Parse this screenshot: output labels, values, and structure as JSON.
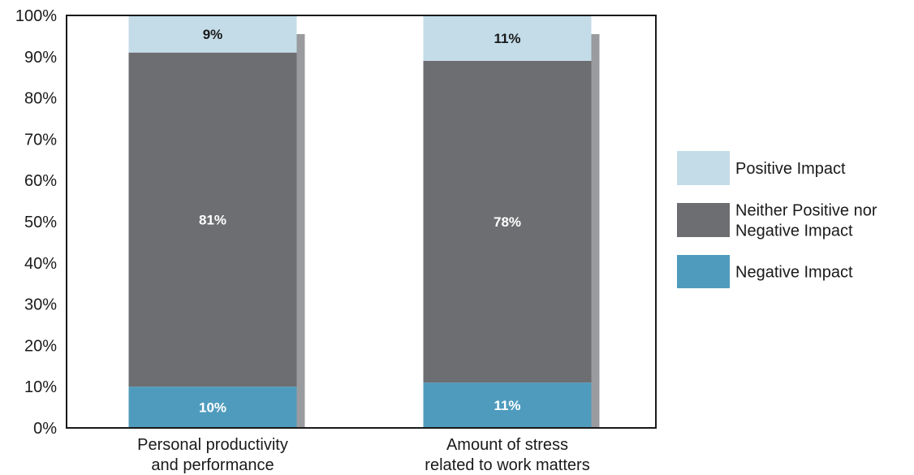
{
  "chart_data": {
    "type": "bar",
    "stacked": true,
    "categories": [
      [
        "Personal productivity",
        "and performance"
      ],
      [
        "Amount of stress",
        "related to work matters"
      ]
    ],
    "series": [
      {
        "name": "Negative Impact",
        "values": [
          10,
          11
        ],
        "labels": [
          "10%",
          "11%"
        ],
        "color": "#4f9bbd",
        "label_color": "#ffffff"
      },
      {
        "name": "Neither Positive nor Negative Impact",
        "legend_lines": [
          "Neither Positive nor",
          "Negative Impact"
        ],
        "values": [
          81,
          78
        ],
        "labels": [
          "81%",
          "78%"
        ],
        "color": "#6d6e71",
        "label_color": "#ffffff"
      },
      {
        "name": "Positive Impact",
        "values": [
          9,
          11
        ],
        "labels": [
          "9%",
          "11%"
        ],
        "color": "#c3dce8",
        "label_color": "#1a1a1a"
      }
    ],
    "ylim": [
      0,
      100
    ],
    "yticks": [
      "0%",
      "10%",
      "20%",
      "30%",
      "40%",
      "50%",
      "60%",
      "70%",
      "80%",
      "90%",
      "100%"
    ],
    "shadow_color": "#9a9b9e",
    "legend_order": [
      2,
      1,
      0
    ],
    "legend_position": "right",
    "grid": false
  }
}
